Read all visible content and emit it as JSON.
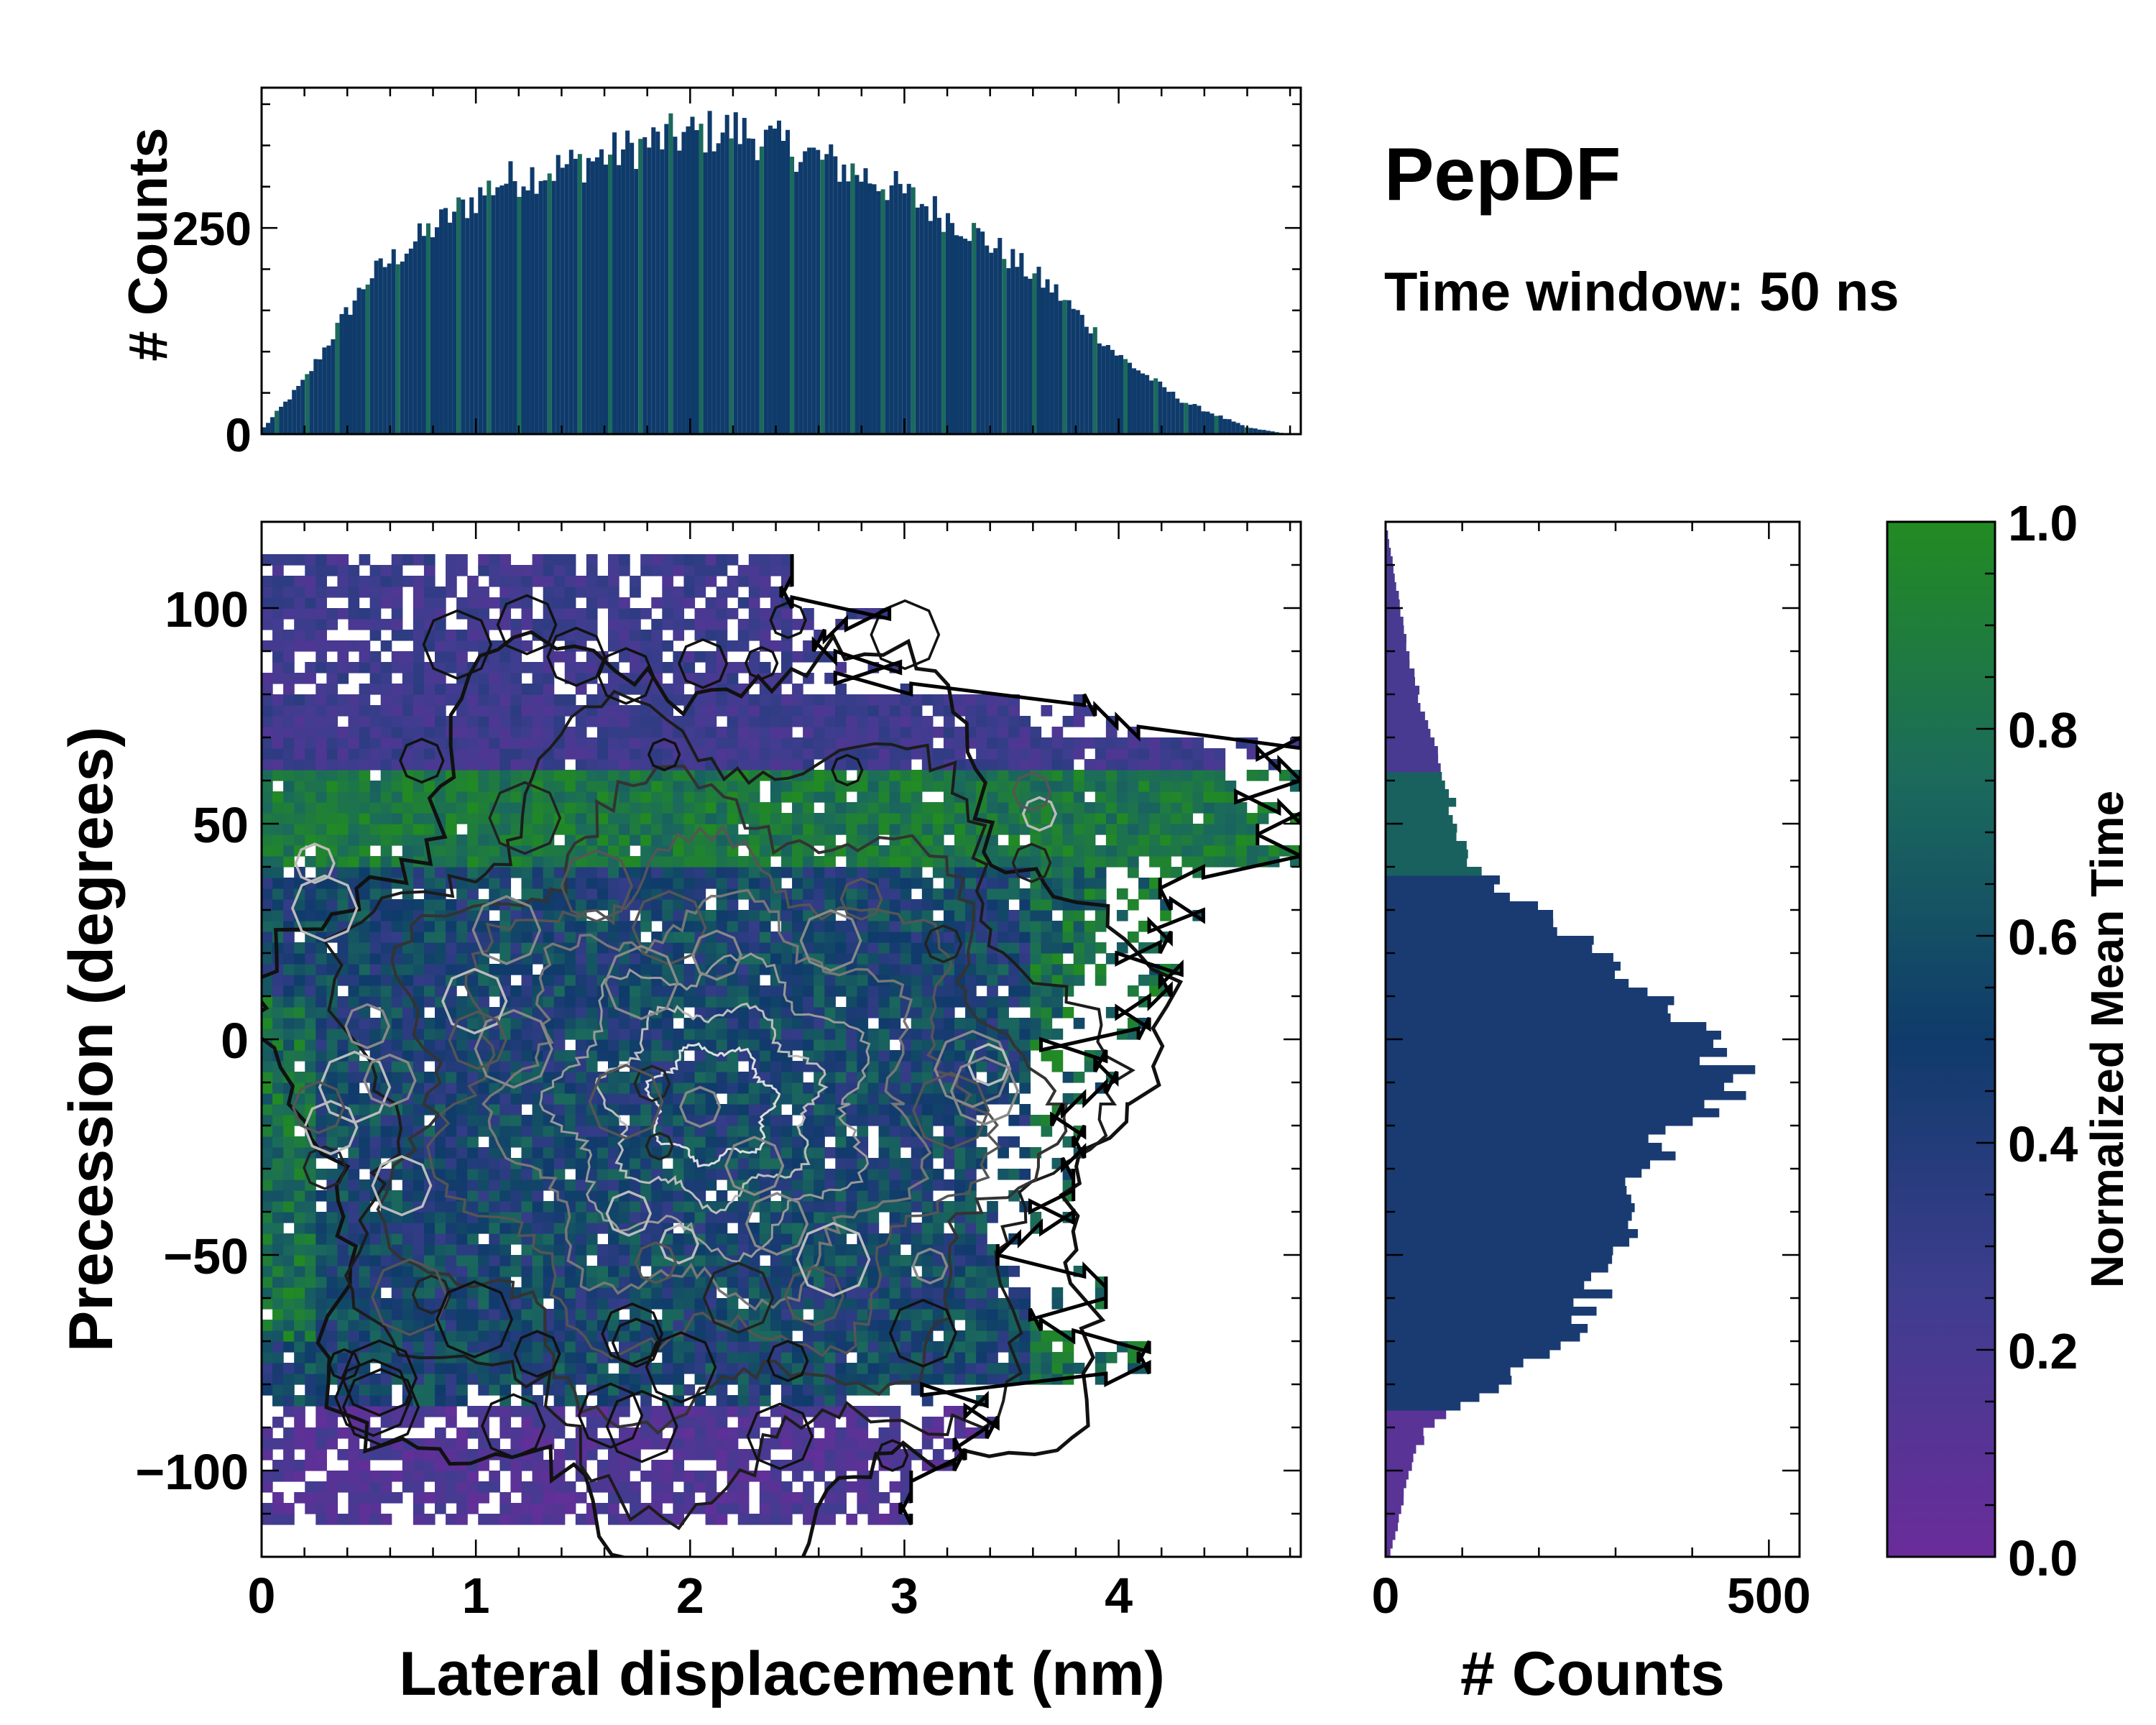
{
  "annotations": {
    "title": "PepDF",
    "subtitle": "Time window: 50 ns"
  },
  "colors": {
    "purple": "#6a2c9a",
    "indigo": "#3f3d8f",
    "navy": "#0f3b6b",
    "teal": "#1b6a5c",
    "green": "#228b22",
    "contour_dark": "#111111",
    "contour_light": "#dddddd"
  },
  "chart_data": [
    {
      "id": "main",
      "type": "heatmap",
      "xlabel": "Lateral displacement (nm)",
      "ylabel": "Precession (degrees)",
      "xlim": [
        0,
        4.85
      ],
      "ylim": [
        -120,
        120
      ],
      "xticks": [
        0,
        1,
        2,
        3,
        4
      ],
      "xtick_labels": [
        "0",
        "1",
        "2",
        "3",
        "4"
      ],
      "yticks": [
        -100,
        -50,
        0,
        50,
        100
      ],
      "ytick_labels": [
        "−100",
        "−50",
        "0",
        "50",
        "100"
      ],
      "value": "normalized mean time",
      "region_summary": {
        "purple_top_band_precession": [
          60,
          112
        ],
        "green_band_precession": [
          40,
          65
        ],
        "purple_bottom_band_precession": [
          -115,
          -85
        ],
        "densest_center": {
          "lateral_displacement": 1.9,
          "precession": -10
        }
      }
    },
    {
      "id": "top_histogram",
      "type": "bar",
      "ylabel": "# Counts",
      "xlim": [
        0,
        4.85
      ],
      "ylim": [
        0,
        420
      ],
      "yticks": [
        0,
        250
      ],
      "ytick_labels": [
        "0",
        "250"
      ],
      "profile_x": [
        0,
        0.2,
        0.5,
        0.8,
        1.1,
        1.5,
        1.9,
        2.2,
        2.5,
        2.9,
        3.3,
        3.7,
        4.0,
        4.3,
        4.6,
        4.8
      ],
      "profile_counts": [
        5,
        65,
        190,
        250,
        305,
        330,
        360,
        370,
        345,
        305,
        250,
        175,
        95,
        40,
        8,
        0
      ]
    },
    {
      "id": "right_histogram",
      "type": "bar",
      "orientation": "horizontal",
      "xlabel": "# Counts",
      "xlim": [
        0,
        540
      ],
      "xticks": [
        0,
        500
      ],
      "xtick_labels": [
        "0",
        "500"
      ],
      "ylim": [
        -120,
        120
      ],
      "profile_precession": [
        -120,
        -110,
        -100,
        -90,
        -80,
        -70,
        -60,
        -45,
        -30,
        -20,
        -10,
        0,
        10,
        20,
        30,
        40,
        50,
        60,
        75,
        90,
        100,
        110,
        120
      ],
      "profile_counts": [
        5,
        20,
        30,
        55,
        150,
        240,
        270,
        310,
        345,
        380,
        460,
        420,
        350,
        280,
        200,
        110,
        90,
        80,
        50,
        30,
        20,
        10,
        0
      ]
    },
    {
      "id": "colorbar",
      "type": "colorbar",
      "label": "Normalized Mean Time",
      "ylim": [
        0,
        1
      ],
      "ticks": [
        0,
        0.2,
        0.4,
        0.6,
        0.8,
        1.0
      ],
      "tick_labels": [
        "0.0",
        "0.2",
        "0.4",
        "0.6",
        "0.8",
        "1.0"
      ]
    }
  ]
}
